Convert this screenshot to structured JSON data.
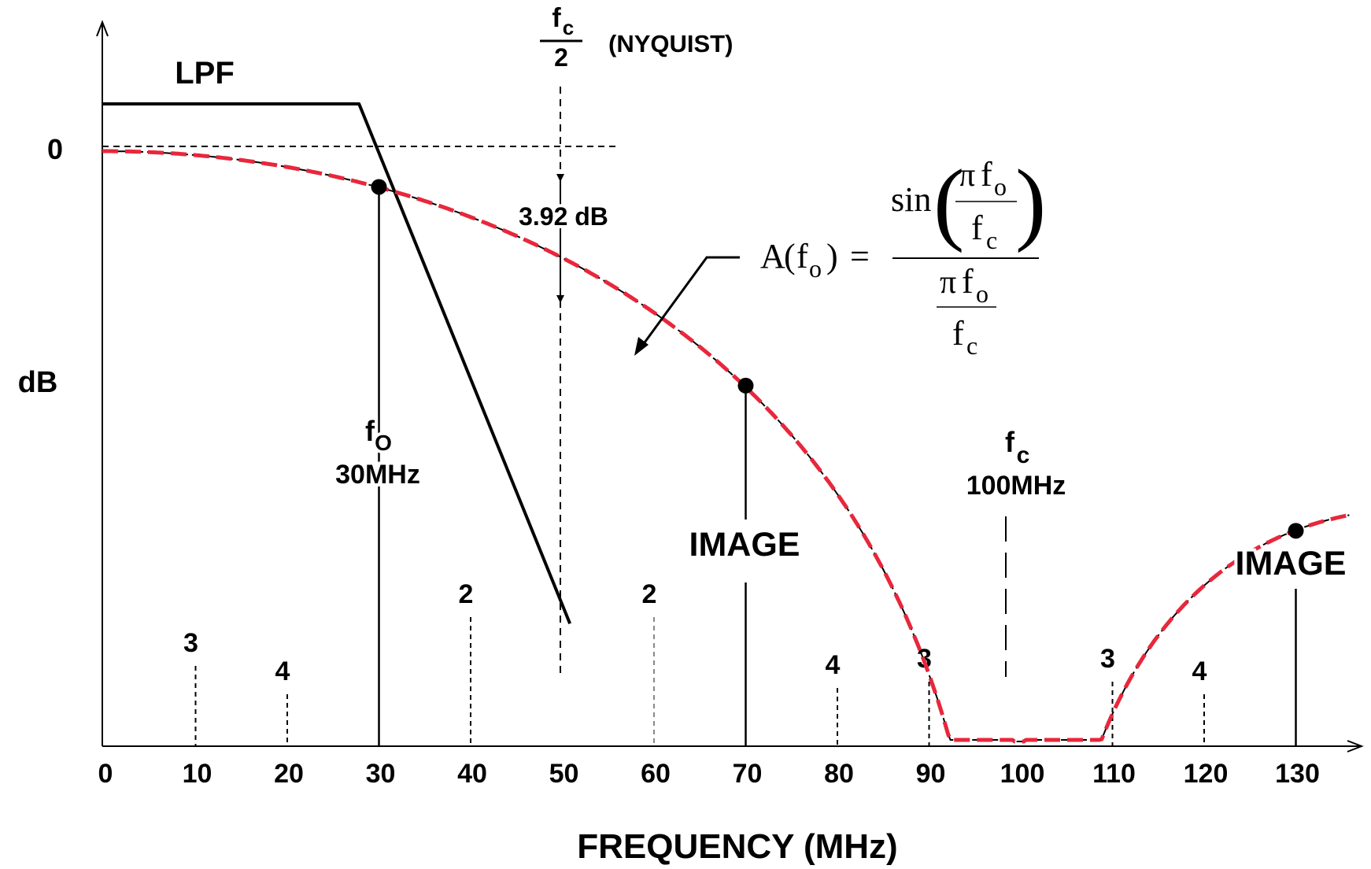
{
  "chart_data": {
    "type": "line",
    "xlabel": "FREQUENCY (MHz)",
    "ylabel": "dB",
    "y_zero_label": "0",
    "xlim": [
      0,
      137
    ],
    "x_ticks": [
      0,
      10,
      20,
      30,
      40,
      50,
      60,
      70,
      80,
      90,
      100,
      110,
      120,
      130
    ],
    "x_tick_labels": [
      "0",
      "10",
      "20",
      "30",
      "40",
      "50",
      "60",
      "70",
      "80",
      "90",
      "100",
      "110",
      "120",
      "130"
    ],
    "series": [
      {
        "name": "A(fo)",
        "color": "#e8273c",
        "function": "20*log10(|sin(pi*fo/fc)/(pi*fo/fc)|)",
        "fc": 100,
        "x_range": [
          0,
          136
        ]
      },
      {
        "name": "LPF",
        "color": "#000000",
        "x": [
          0,
          28,
          51
        ],
        "y_db": [
          1.75,
          1.75,
          -17.5
        ]
      }
    ],
    "points": [
      {
        "x": 30,
        "label_sym": "f",
        "label_sub": "O",
        "label_value": "30MHz"
      },
      {
        "x": 70,
        "label": "IMAGE"
      },
      {
        "x": 130,
        "label": "IMAGE"
      }
    ],
    "nyquist": {
      "x": 50,
      "frac_num": "f",
      "frac_num_sub": "c",
      "frac_den": "2",
      "label": "(NYQUIST)",
      "attenuation": "3.92 dB"
    },
    "fc_marker": {
      "x": 100,
      "label_sym": "f",
      "label_sub": "c",
      "label_value": "100MHz"
    },
    "image_markers": [
      {
        "x": 10,
        "label": "3"
      },
      {
        "x": 20,
        "label": "4"
      },
      {
        "x": 40,
        "label": "2"
      },
      {
        "x": 60,
        "label": "2"
      },
      {
        "x": 80,
        "label": "4"
      },
      {
        "x": 90,
        "label": "3"
      },
      {
        "x": 110,
        "label": "3"
      },
      {
        "x": 120,
        "label": "4"
      }
    ],
    "lpf_label": "LPF",
    "formula": {
      "lhs_a": "A",
      "lhs_f": "f",
      "lhs_sub": "o",
      "sin": "sin",
      "pi": "π",
      "f": "f",
      "sub_o": "o",
      "sub_c": "c",
      "eq": "="
    }
  }
}
